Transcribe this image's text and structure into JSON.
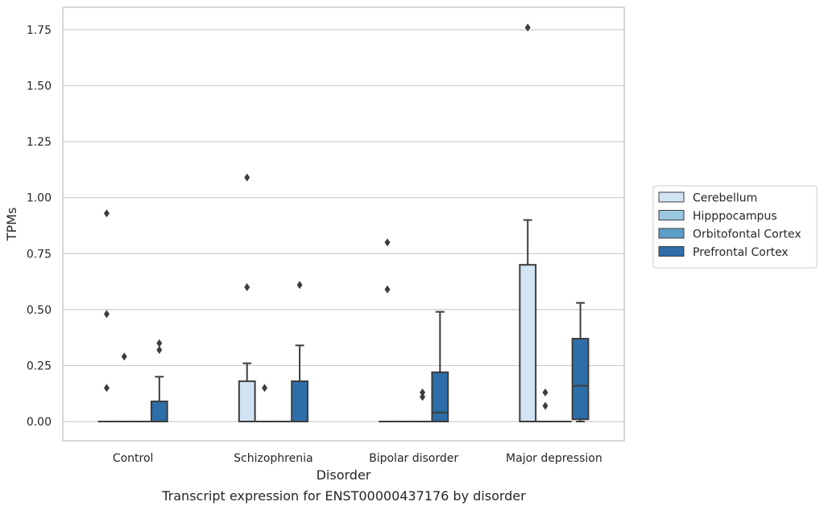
{
  "chart_data": {
    "type": "box",
    "xlabel": "Disorder",
    "ylabel": "TPMs",
    "caption": "Transcript expression for ENST00000437176 by disorder",
    "categories": [
      "Control",
      "Schizophrenia",
      "Bipolar disorder",
      "Major depression"
    ],
    "ylim": [
      -0.09,
      1.85
    ],
    "yticks": [
      "0.00",
      "0.25",
      "0.50",
      "0.75",
      "1.00",
      "1.25",
      "1.50",
      "1.75"
    ],
    "grid": true,
    "legend_position": "right",
    "series": [
      {
        "name": "Cerebellum",
        "color": "#d2e3f3",
        "boxes": [
          {
            "min": 0,
            "q1": 0,
            "median": 0,
            "q3": 0,
            "max": 0,
            "outliers": [
              0.93,
              0.48,
              0.15
            ]
          },
          {
            "min": 0,
            "q1": 0,
            "median": 0,
            "q3": 0.18,
            "max": 0.26,
            "outliers": [
              1.09,
              0.6
            ]
          },
          {
            "min": 0,
            "q1": 0,
            "median": 0,
            "q3": 0,
            "max": 0,
            "outliers": [
              0.8,
              0.59
            ]
          },
          {
            "min": 0,
            "q1": 0,
            "median": 0,
            "q3": 0.7,
            "max": 0.9,
            "outliers": [
              1.76
            ]
          }
        ]
      },
      {
        "name": "Hipppocampus",
        "color": "#9ac8e0",
        "boxes": [
          {
            "min": 0,
            "q1": 0,
            "median": 0,
            "q3": 0,
            "max": 0,
            "outliers": [
              0.29
            ]
          },
          {
            "min": 0,
            "q1": 0,
            "median": 0,
            "q3": 0,
            "max": 0,
            "outliers": [
              0.15
            ]
          },
          {
            "min": 0,
            "q1": 0,
            "median": 0,
            "q3": 0,
            "max": 0,
            "outliers": []
          },
          {
            "min": 0,
            "q1": 0,
            "median": 0,
            "q3": 0,
            "max": 0,
            "outliers": [
              0.13,
              0.07
            ]
          }
        ]
      },
      {
        "name": "Orbitofontal Cortex",
        "color": "#5b9ec9",
        "boxes": [
          {
            "min": 0,
            "q1": 0,
            "median": 0,
            "q3": 0,
            "max": 0,
            "outliers": []
          },
          {
            "min": 0,
            "q1": 0,
            "median": 0,
            "q3": 0,
            "max": 0,
            "outliers": []
          },
          {
            "min": 0,
            "q1": 0,
            "median": 0,
            "q3": 0,
            "max": 0,
            "outliers": [
              0.13,
              0.11
            ]
          },
          {
            "min": 0,
            "q1": 0,
            "median": 0,
            "q3": 0,
            "max": 0,
            "outliers": []
          }
        ]
      },
      {
        "name": "Prefrontal Cortex",
        "color": "#2d6ea8",
        "boxes": [
          {
            "min": 0,
            "q1": 0,
            "median": 0,
            "q3": 0.09,
            "max": 0.2,
            "outliers": [
              0.35,
              0.32
            ]
          },
          {
            "min": 0,
            "q1": 0,
            "median": 0,
            "q3": 0.18,
            "max": 0.34,
            "outliers": [
              0.61
            ]
          },
          {
            "min": 0,
            "q1": 0,
            "median": 0.04,
            "q3": 0.22,
            "max": 0.49,
            "outliers": []
          },
          {
            "min": 0,
            "q1": 0.01,
            "median": 0.16,
            "q3": 0.37,
            "max": 0.53,
            "outliers": []
          }
        ]
      }
    ]
  }
}
